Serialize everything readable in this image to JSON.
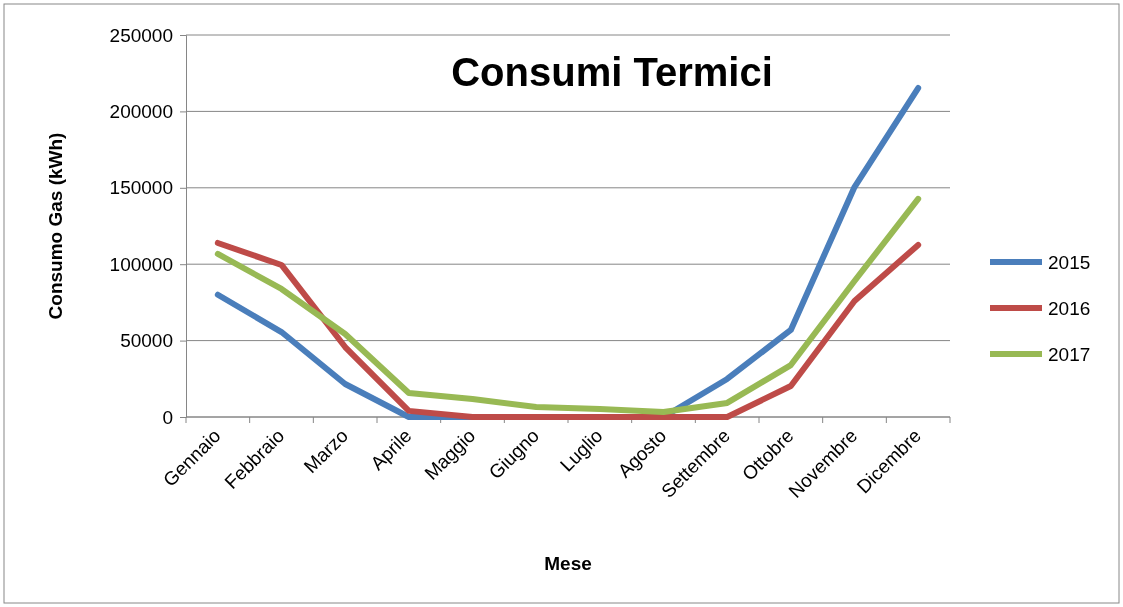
{
  "chart_data": {
    "type": "line",
    "title": "Consumi Termici",
    "xlabel": "Mese",
    "ylabel": "Consumo Gas (kWh)",
    "categories": [
      "Gennaio",
      "Febbraio",
      "Marzo",
      "Aprile",
      "Maggio",
      "Giugno",
      "Luglio",
      "Agosto",
      "Settembre",
      "Ottobre",
      "Novembre",
      "Dicembre"
    ],
    "series": [
      {
        "name": "2015",
        "color": "#4a7ebb",
        "values": [
          80000,
          55600,
          21600,
          0,
          0,
          0,
          0,
          0,
          24900,
          57000,
          150500,
          215300
        ]
      },
      {
        "name": "2016",
        "color": "#be4b48",
        "values": [
          113900,
          99500,
          45800,
          4000,
          0,
          0,
          0,
          0,
          0,
          20300,
          75900,
          112600
        ]
      },
      {
        "name": "2017",
        "color": "#98b954",
        "values": [
          106700,
          83800,
          54300,
          15700,
          11800,
          6500,
          5200,
          3300,
          9200,
          34000,
          89000,
          142700
        ]
      }
    ],
    "ylim": [
      0,
      250000
    ],
    "yticks": [
      0,
      50000,
      100000,
      150000,
      200000,
      250000
    ],
    "grid": "y",
    "legend": "right",
    "marker": "none",
    "line_style": "solid"
  }
}
